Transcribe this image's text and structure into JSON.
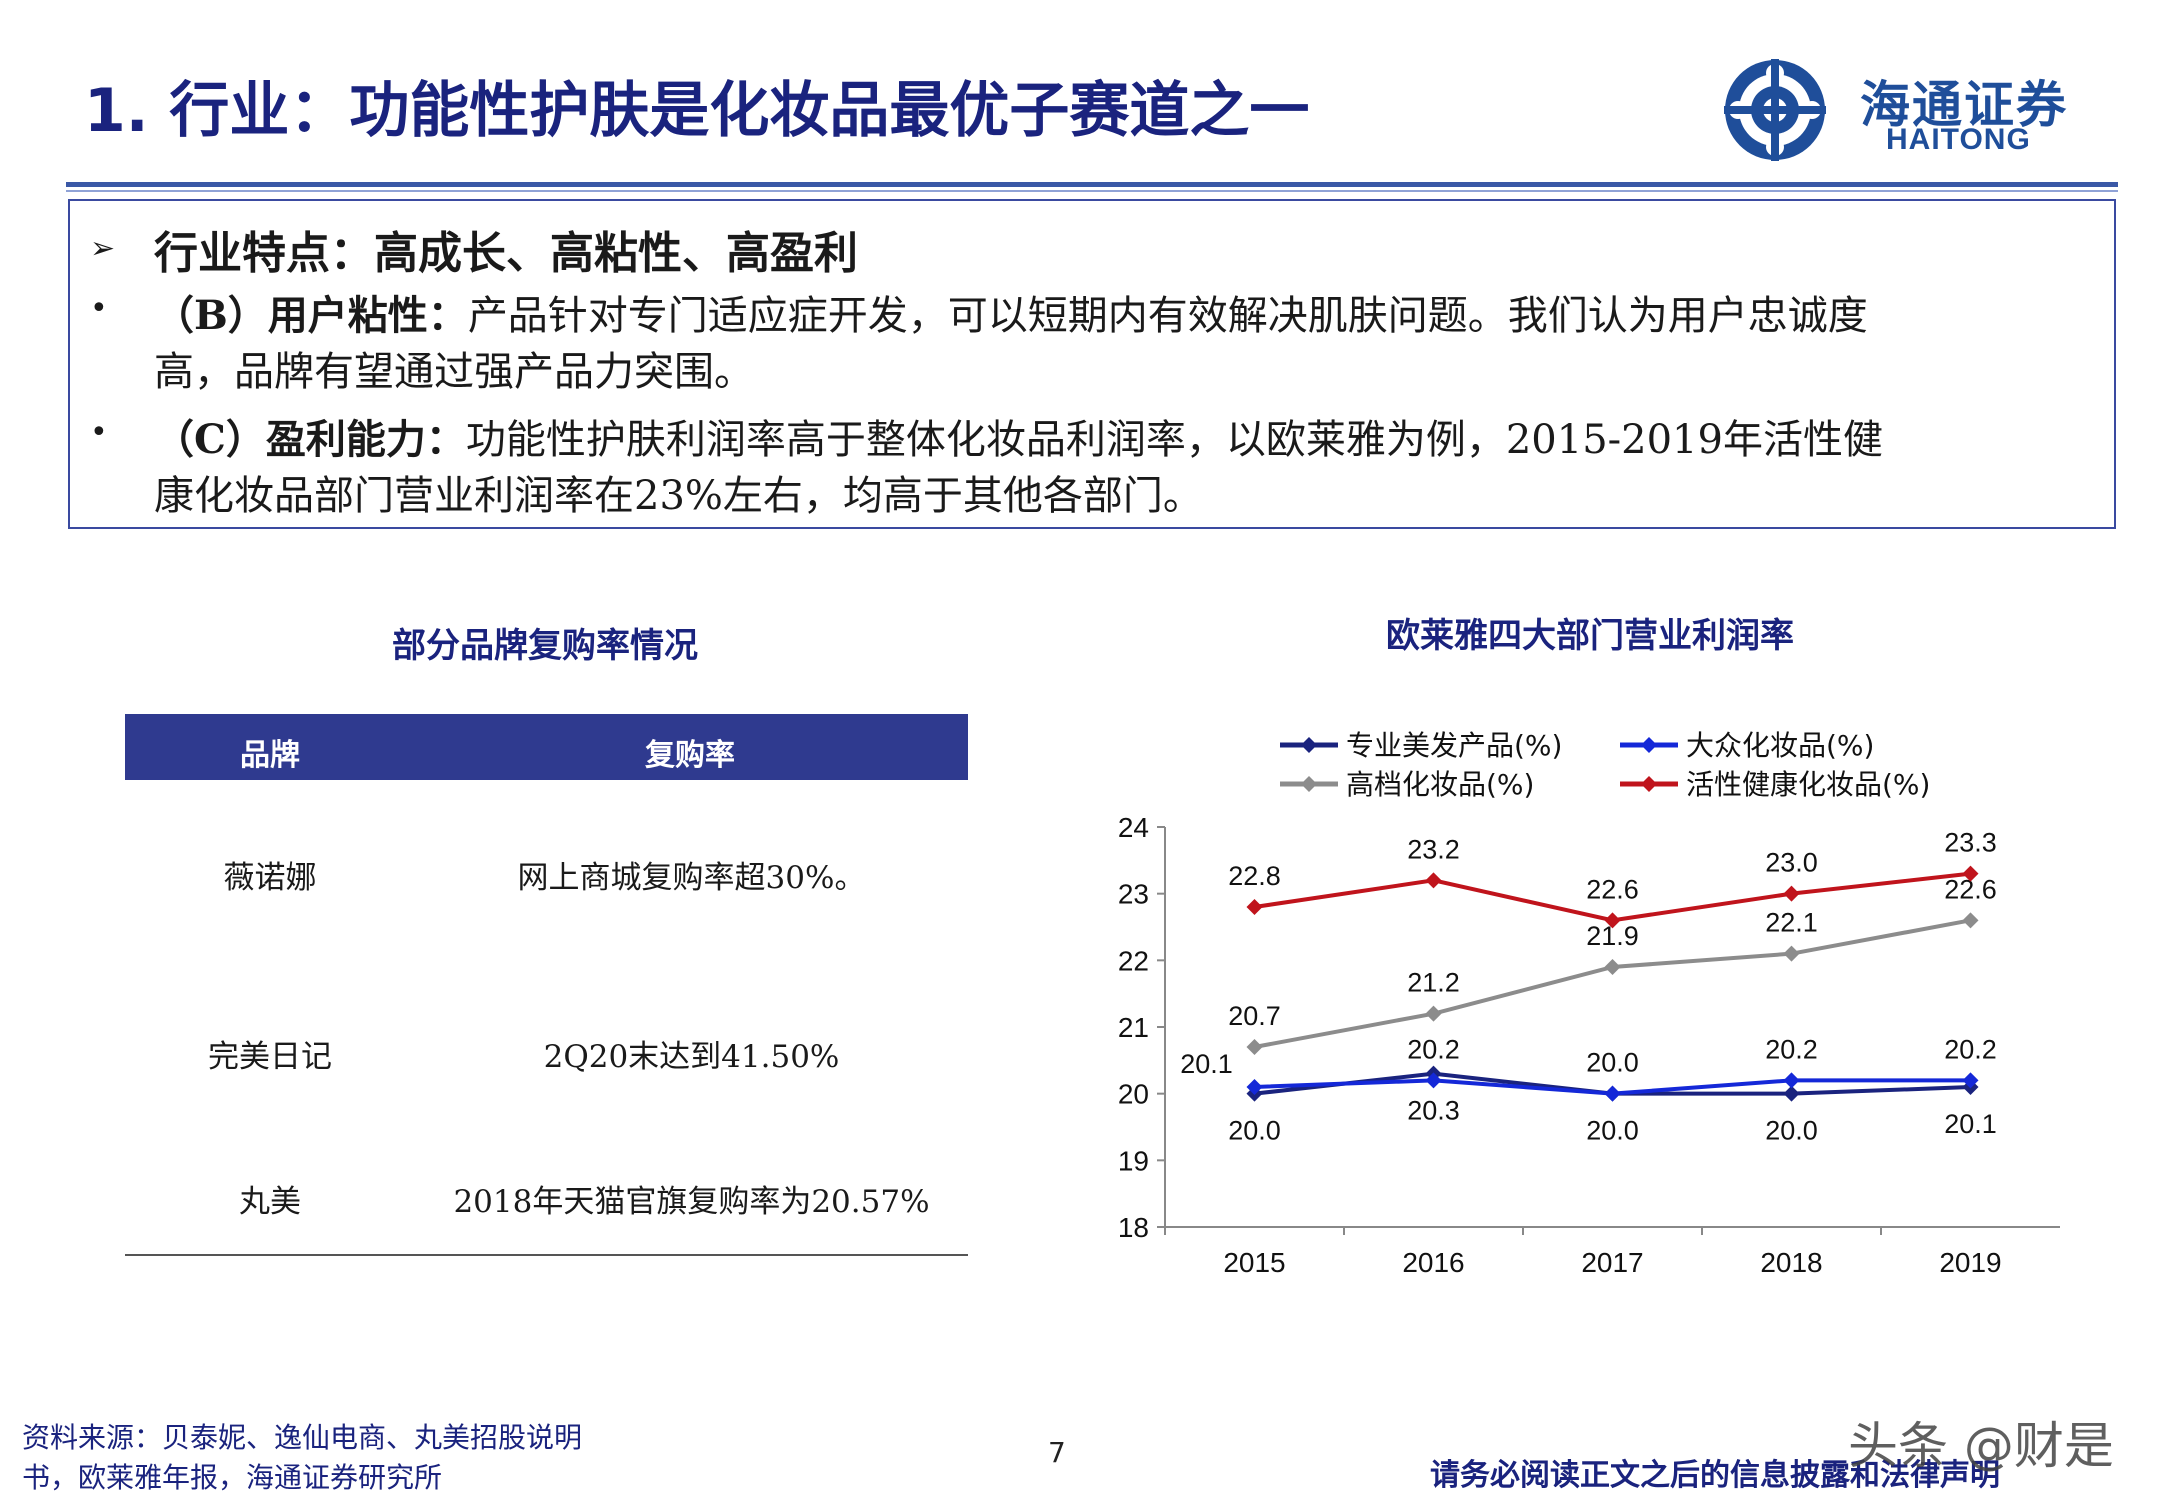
{
  "header": {
    "title": "1. 行业：功能性护肤是化妆品最优子赛道之一",
    "logo_cn": "海通证券",
    "logo_en": "HAITONG"
  },
  "summary": {
    "heading": "行业特点：高成长、高粘性、高盈利",
    "points": [
      {
        "label": "（B）用户粘性：",
        "line1": "产品针对专门适应症开发，可以短期内有效解决肌肤问题。我们认为用户忠诚度",
        "line2": "高，品牌有望通过强产品力突围。"
      },
      {
        "label": "（C）盈利能力：",
        "line1": "功能性护肤利润率高于整体化妆品利润率，以欧莱雅为例，2015-2019年活性健",
        "line2": "康化妆品部门营业利润率在23%左右，均高于其他各部门。"
      }
    ]
  },
  "repurchase_table": {
    "title": "部分品牌复购率情况",
    "headers": [
      "品牌",
      "复购率"
    ],
    "rows": [
      {
        "brand": "薇诺娜",
        "rate": "网上商城复购率超30%。"
      },
      {
        "brand": "完美日记",
        "rate": "2Q20末达到41.50%"
      },
      {
        "brand": "丸美",
        "rate": "2018年天猫官旗复购率为20.57%"
      }
    ]
  },
  "chart_data": {
    "type": "line",
    "title": "欧莱雅四大部门营业利润率",
    "categories": [
      "2015",
      "2016",
      "2017",
      "2018",
      "2019"
    ],
    "ylim": [
      18,
      24
    ],
    "yticks": [
      "18",
      "19",
      "20",
      "21",
      "22",
      "23",
      "24"
    ],
    "series": [
      {
        "name": "专业美发产品(%)",
        "color": "#1a237e",
        "values": [
          20.0,
          20.3,
          20.0,
          20.0,
          20.1
        ],
        "labels": [
          "20.0",
          "20.3",
          "20.0",
          "20.0",
          "20.1"
        ],
        "label_pos": "below"
      },
      {
        "name": "大众化妆品(%)",
        "color": "#1428d8",
        "values": [
          20.1,
          20.2,
          20.0,
          20.2,
          20.2
        ],
        "labels": [
          "20.1",
          "20.2",
          "20.0",
          "20.2",
          "20.2"
        ],
        "label_pos": "above"
      },
      {
        "name": "高档化妆品(%)",
        "color": "#8c8c8c",
        "values": [
          20.7,
          21.2,
          21.9,
          22.1,
          22.6
        ],
        "labels": [
          "20.7",
          "21.2",
          "21.9",
          "22.1",
          "22.6"
        ],
        "label_pos": "above"
      },
      {
        "name": "活性健康化妆品(%)",
        "color": "#c0141c",
        "values": [
          22.8,
          23.2,
          22.6,
          23.0,
          23.3
        ],
        "labels": [
          "22.8",
          "23.2",
          "22.6",
          "23.0",
          "23.3"
        ],
        "label_pos": "above"
      }
    ]
  },
  "footer": {
    "source_line1": "资料来源：贝泰妮、逸仙电商、丸美招股说明",
    "source_line2": "书，欧莱雅年报，海通证券研究所",
    "page_number": "7",
    "disclaimer": "请务必阅读正文之后的信息披露和法律声明",
    "watermark": "头条 @财是"
  },
  "colors": {
    "title_blue": "#1a237e",
    "table_header": "#2f3a8f",
    "rule": "#3a58a6"
  }
}
